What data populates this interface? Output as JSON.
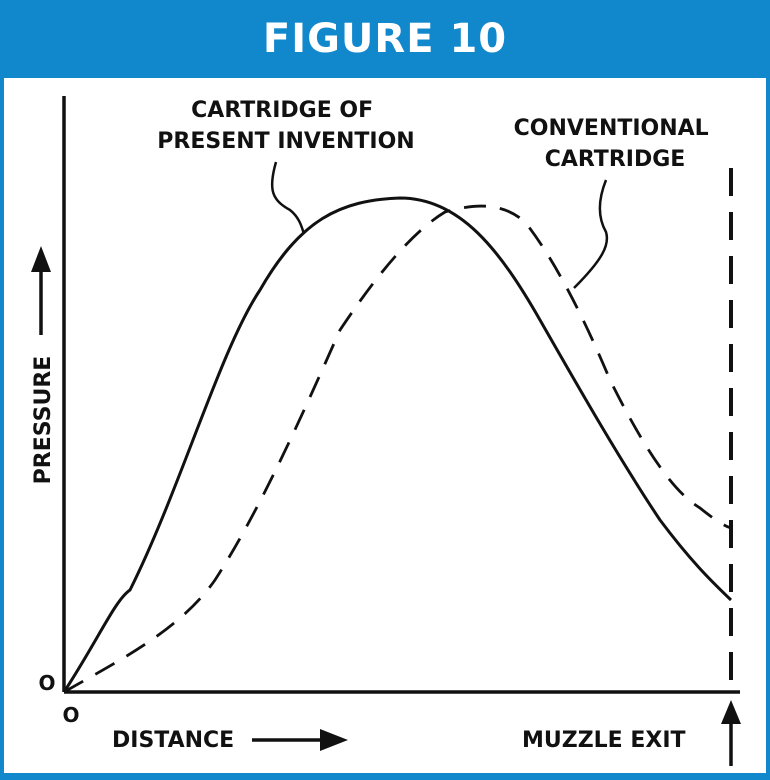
{
  "header": {
    "title": "FIGURE 10",
    "color": "#1188cc"
  },
  "diagram": {
    "y_axis_label": "PRESSURE",
    "x_axis_label": "DISTANCE",
    "origin_x": "O",
    "origin_y": "O",
    "muzzle_label": "MUZZLE EXIT",
    "invention_label_lines": [
      "CARTRIDGE OF",
      "PRESENT INVENTION"
    ],
    "conventional_label_lines": [
      "CONVENTIONAL",
      "CARTRIDGE"
    ],
    "invention_line_style": "solid",
    "conventional_line_style": "dashed"
  }
}
